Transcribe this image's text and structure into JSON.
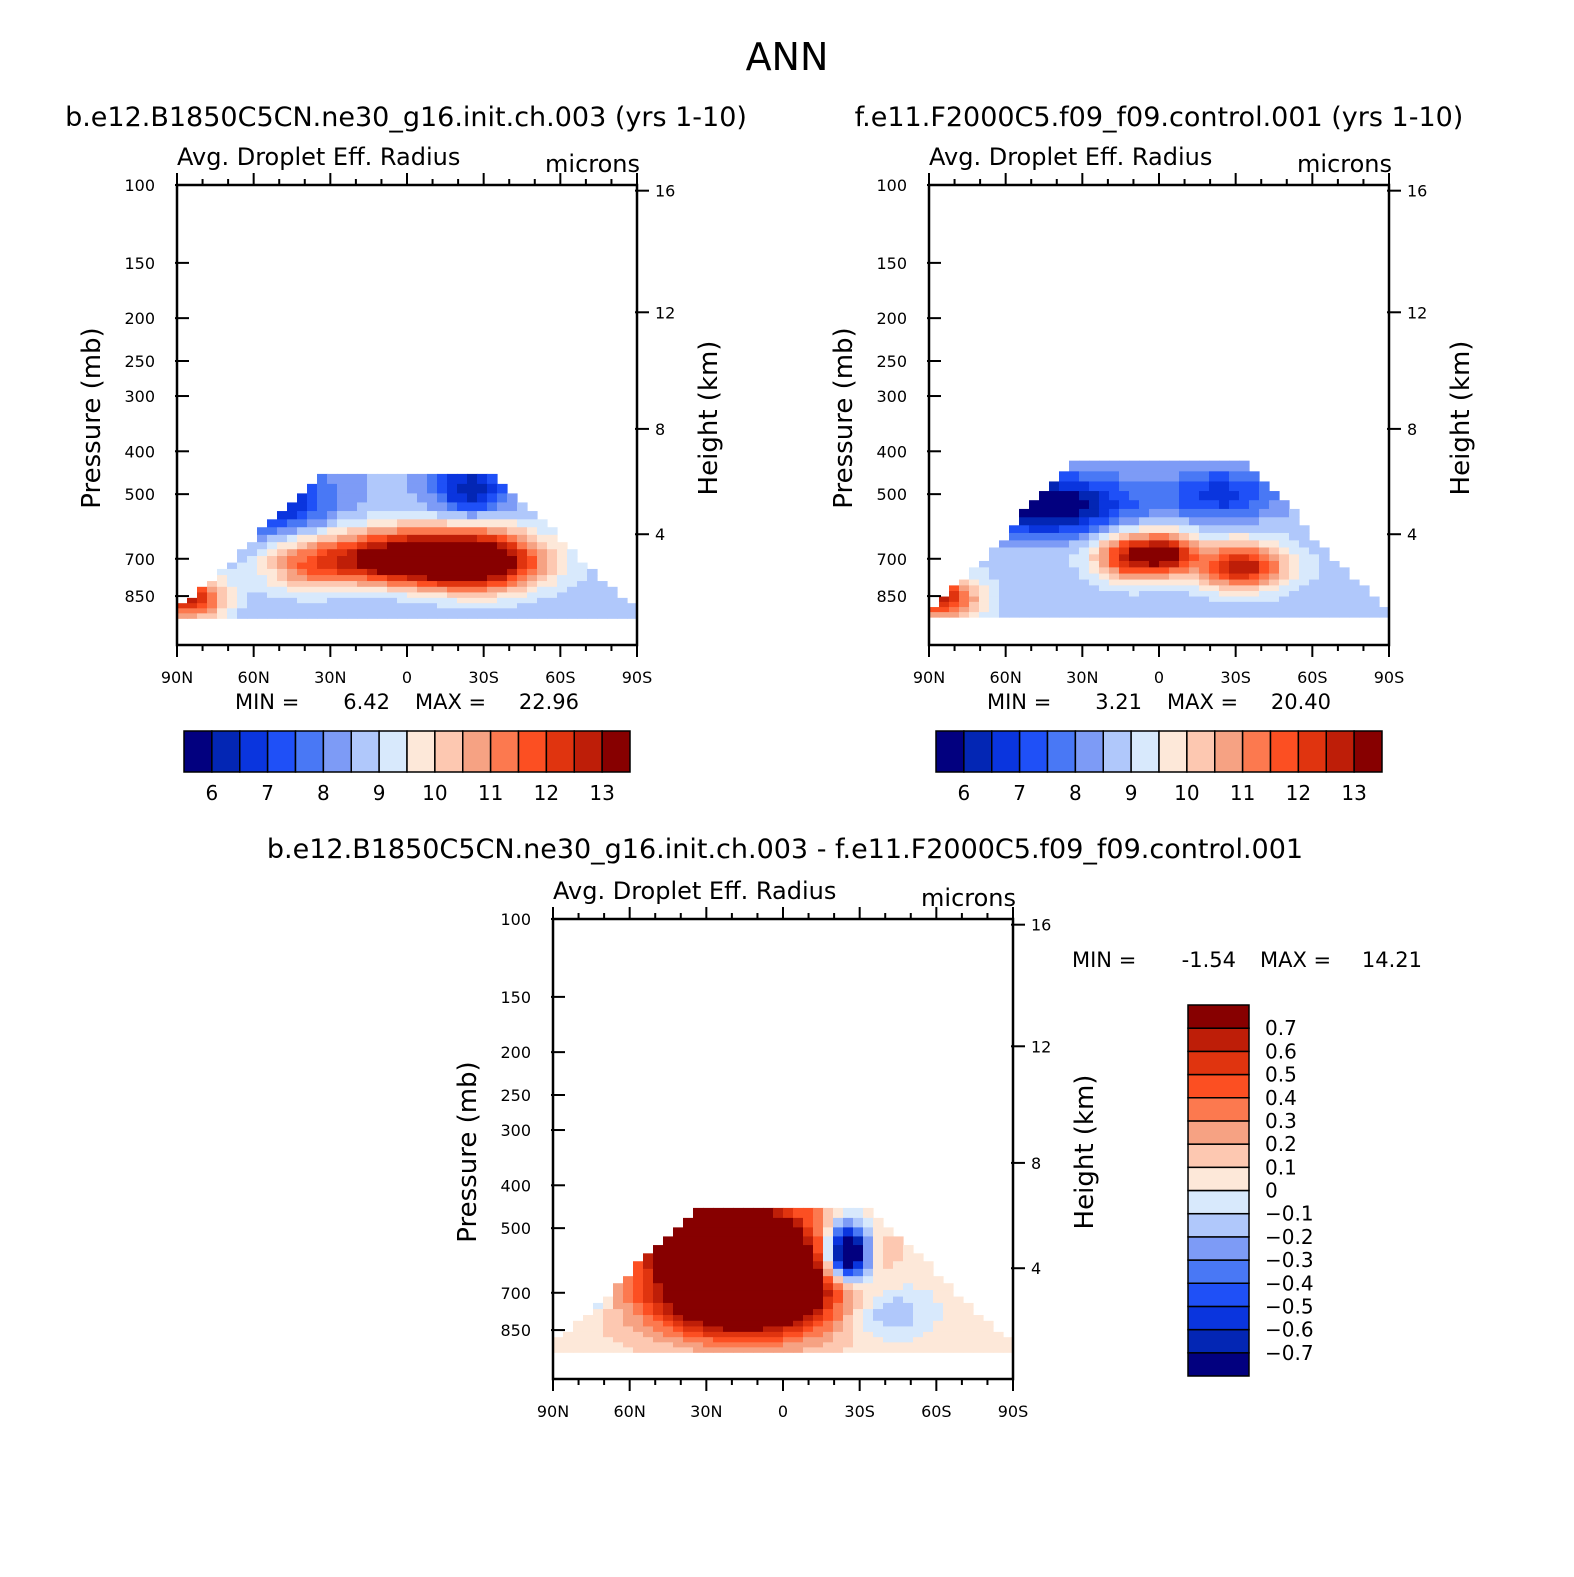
{
  "figure": {
    "title": "ANN",
    "colors": {
      "abs": [
        "#02007f",
        "#0326b4",
        "#0a35de",
        "#1f50f7",
        "#4978f5",
        "#7d9bf6",
        "#b0c8fb",
        "#d8e9fc",
        "#fde8d9",
        "#fdc8b1",
        "#f6a283",
        "#fc794f",
        "#fc4f22",
        "#e0340f",
        "#be1e08",
        "#870000"
      ],
      "diff": [
        "#02007f",
        "#0326b4",
        "#0a35de",
        "#1f50f7",
        "#4978f5",
        "#7d9bf6",
        "#b0c8fb",
        "#d8e9fc",
        "#fde8d9",
        "#fdc8b1",
        "#f6a283",
        "#fc794f",
        "#fc4f22",
        "#e0340f",
        "#be1e08",
        "#870000"
      ]
    }
  },
  "chart_data": [
    {
      "id": "panel-1",
      "type": "heatmap",
      "title": "b.e12.B1850C5CN.ne30_g16.init.ch.003 (yrs 1-10)",
      "variable": "Avg. Droplet Eff. Radius",
      "units": "microns",
      "ylabel": "Pressure (mb)",
      "ylabel2": "Height (km)",
      "x_ticks": [
        "90N",
        "60N",
        "30N",
        "0",
        "30S",
        "60S",
        "90S"
      ],
      "y_ticks": [
        "100",
        "150",
        "200",
        "250",
        "300",
        "400",
        "500",
        "700",
        "850"
      ],
      "y2_ticks": [
        "16",
        "12",
        "8",
        "4"
      ],
      "min_label": "MIN =",
      "min_value": "6.42",
      "max_label": "MAX =",
      "max_value": "22.96",
      "colorbar": {
        "orientation": "horizontal",
        "labels": [
          "6",
          "7",
          "8",
          "9",
          "10",
          "11",
          "12",
          "13"
        ]
      },
      "field": {
        "mode": "abs",
        "top_pressure": 450,
        "blobs": [
          {
            "lat": -5,
            "p": 690,
            "slat": 28,
            "sp": 70,
            "amp": 6.2
          },
          {
            "lat": -30,
            "p": 720,
            "slat": 16,
            "sp": 90,
            "amp": 2.5
          },
          {
            "lat": 85,
            "p": 850,
            "slat": 10,
            "sp": 70,
            "amp": 4.0
          },
          {
            "lat": 40,
            "p": 720,
            "slat": 12,
            "sp": 80,
            "amp": 1.5
          },
          {
            "lat": 55,
            "p": 520,
            "slat": 18,
            "sp": 70,
            "amp": -2.4
          },
          {
            "lat": -25,
            "p": 480,
            "slat": 10,
            "sp": 50,
            "amp": -2.6
          }
        ],
        "base": 8.6
      }
    },
    {
      "id": "panel-2",
      "type": "heatmap",
      "title": "f.e11.F2000C5.f09_f09.control.001 (yrs 1-10)",
      "variable": "Avg. Droplet Eff. Radius",
      "units": "microns",
      "ylabel": "Pressure (mb)",
      "ylabel2": "Height (km)",
      "x_ticks": [
        "90N",
        "60N",
        "30N",
        "0",
        "30S",
        "60S",
        "90S"
      ],
      "y_ticks": [
        "100",
        "150",
        "200",
        "250",
        "300",
        "400",
        "500",
        "700",
        "850"
      ],
      "y2_ticks": [
        "16",
        "12",
        "8",
        "4"
      ],
      "min_label": "MIN =",
      "min_value": "3.21",
      "max_label": "MAX =",
      "max_value": "20.40",
      "colorbar": {
        "orientation": "horizontal",
        "labels": [
          "6",
          "7",
          "8",
          "9",
          "10",
          "11",
          "12",
          "13"
        ]
      },
      "field": {
        "mode": "abs",
        "top_pressure": 420,
        "blobs": [
          {
            "lat": 10,
            "p": 680,
            "slat": 10,
            "sp": 60,
            "amp": 4.2
          },
          {
            "lat": -5,
            "p": 670,
            "slat": 7,
            "sp": 50,
            "amp": 3.2
          },
          {
            "lat": -32,
            "p": 720,
            "slat": 12,
            "sp": 60,
            "amp": 4.2
          },
          {
            "lat": 85,
            "p": 850,
            "slat": 10,
            "sp": 70,
            "amp": 3.8
          },
          {
            "lat": 45,
            "p": 520,
            "slat": 25,
            "sp": 60,
            "amp": -3.5
          },
          {
            "lat": -25,
            "p": 490,
            "slat": 15,
            "sp": 50,
            "amp": -2.0
          }
        ],
        "base": 8.8
      }
    },
    {
      "id": "panel-3",
      "type": "heatmap",
      "title": "b.e12.B1850C5CN.ne30_g16.init.ch.003 - f.e11.F2000C5.f09_f09.control.001",
      "variable": "Avg. Droplet Eff. Radius",
      "units": "microns",
      "ylabel": "Pressure (mb)",
      "ylabel2": "Height (km)",
      "x_ticks": [
        "90N",
        "60N",
        "30N",
        "0",
        "30S",
        "60S",
        "90S"
      ],
      "y_ticks": [
        "100",
        "150",
        "200",
        "250",
        "300",
        "400",
        "500",
        "700",
        "850"
      ],
      "y2_ticks": [
        "16",
        "12",
        "8",
        "4"
      ],
      "min_label": "MIN =",
      "min_value": "-1.54",
      "max_label": "MAX =",
      "max_value": "14.21",
      "colorbar": {
        "orientation": "vertical",
        "labels": [
          "0.7",
          "0.6",
          "0.5",
          "0.4",
          "0.3",
          "0.2",
          "0.1",
          "0",
          "-0.1",
          "-0.2",
          "-0.3",
          "-0.4",
          "-0.5",
          "-0.6",
          "-0.7"
        ]
      },
      "field": {
        "mode": "diff",
        "top_pressure": 450,
        "blobs": [
          {
            "lat": 15,
            "p": 650,
            "slat": 25,
            "sp": 140,
            "amp": 1.6
          },
          {
            "lat": 30,
            "p": 500,
            "slat": 15,
            "sp": 60,
            "amp": 0.9
          },
          {
            "lat": -25,
            "p": 560,
            "slat": 6,
            "sp": 60,
            "amp": -1.4
          },
          {
            "lat": 75,
            "p": 660,
            "slat": 5,
            "sp": 60,
            "amp": -0.6
          },
          {
            "lat": -40,
            "p": 760,
            "slat": 12,
            "sp": 80,
            "amp": -0.3
          }
        ],
        "base": 0.05
      }
    }
  ]
}
